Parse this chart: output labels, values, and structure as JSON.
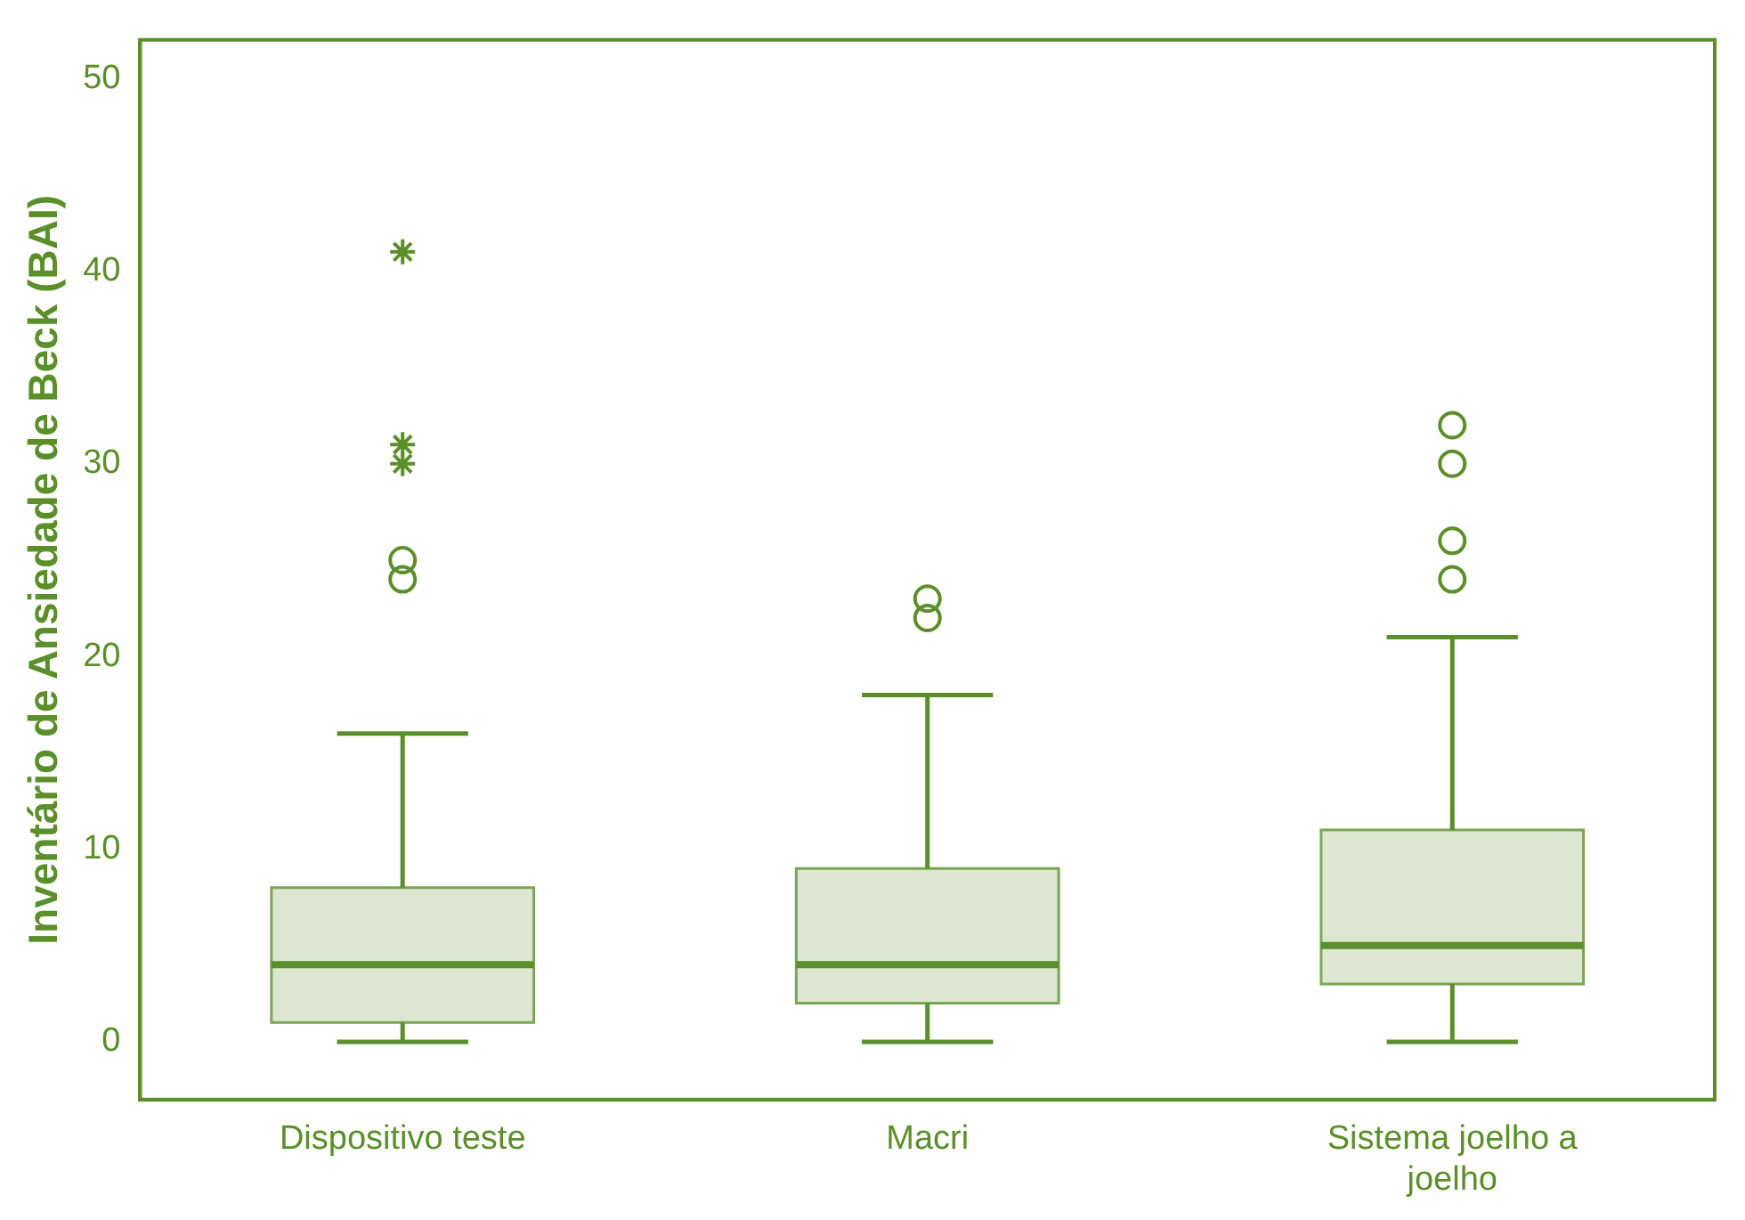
{
  "chart_data": {
    "type": "box",
    "ylabel": "Inventário de Ansiedade de Beck (BAI)",
    "categories": [
      "Dispositivo teste",
      "Macri",
      "Sistema joelho a joelho"
    ],
    "color": "#dce6d0",
    "ylim": [
      -3,
      52
    ],
    "yticks": [
      0,
      10,
      20,
      30,
      40,
      50
    ],
    "grid": false,
    "legend": false,
    "boxes": [
      {
        "low": 0,
        "q1": 1,
        "median": 4,
        "q3": 8,
        "high": 16,
        "outliers": [
          24,
          25,
          30,
          31,
          41
        ]
      },
      {
        "low": 0,
        "q1": 2,
        "median": 4,
        "q3": 9,
        "high": 18,
        "outliers": [
          22,
          23
        ]
      },
      {
        "low": 0,
        "q1": 3,
        "median": 5,
        "q3": 11,
        "high": 21,
        "outliers": [
          24,
          26,
          30,
          32
        ]
      }
    ]
  }
}
